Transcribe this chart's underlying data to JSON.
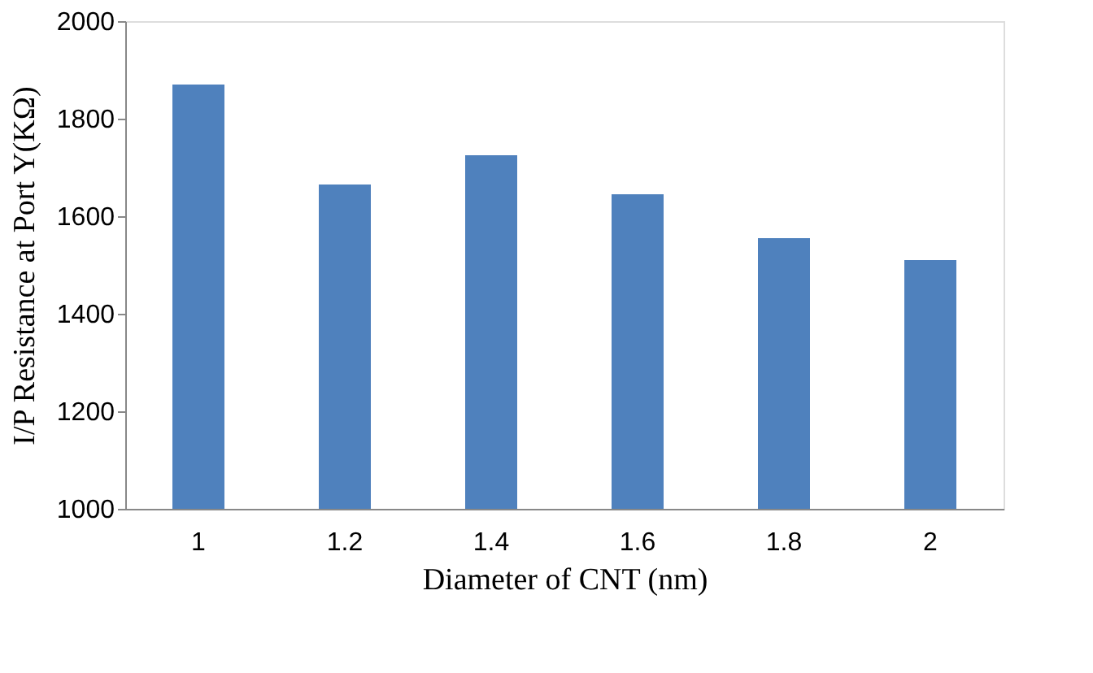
{
  "chart_data": {
    "type": "bar",
    "xlabel": "Diameter of CNT (nm)",
    "ylabel": "I/P Resistance at Port Y(KΩ)",
    "categories": [
      "1",
      "1.2",
      "1.4",
      "1.6",
      "1.8",
      "2"
    ],
    "values": [
      1870,
      1665,
      1725,
      1645,
      1555,
      1510
    ],
    "color": "#4f81bd",
    "ylim": [
      1000,
      2000
    ],
    "yticks": [
      1000,
      1200,
      1400,
      1600,
      1800,
      2000
    ],
    "grid": false
  }
}
